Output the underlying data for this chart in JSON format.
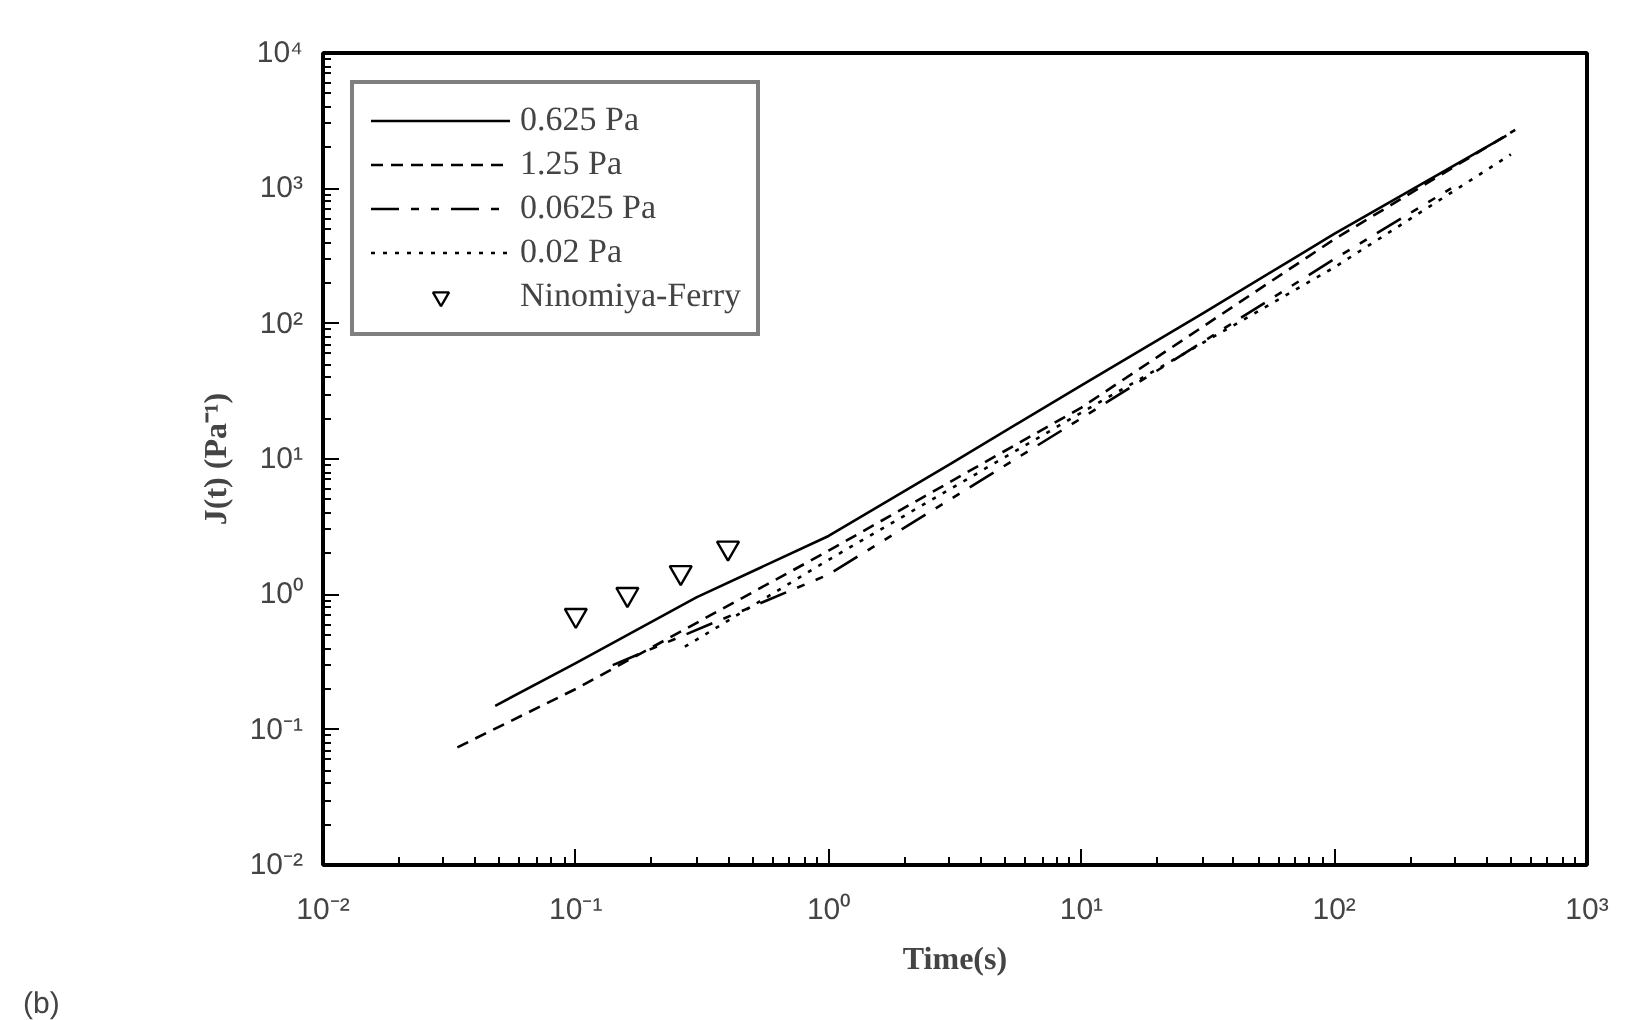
{
  "chart_data": {
    "type": "line",
    "xlabel": "Time(s)",
    "ylabel": "J(t) (Pa⁻¹)",
    "log": "xy",
    "grid": false,
    "legend": "top left",
    "xlim": [
      0.01,
      1000
    ],
    "ylim": [
      0.01,
      10000
    ],
    "xticks": [
      {
        "value": 0.01,
        "label": "10⁻²"
      },
      {
        "value": 0.1,
        "label": "10⁻¹"
      },
      {
        "value": 1,
        "label": "10⁰"
      },
      {
        "value": 10,
        "label": "10¹"
      },
      {
        "value": 100,
        "label": "10²"
      },
      {
        "value": 1000,
        "label": "10³"
      }
    ],
    "yticks": [
      {
        "value": 0.01,
        "label": "10⁻²"
      },
      {
        "value": 0.1,
        "label": "10⁻¹"
      },
      {
        "value": 1,
        "label": "10⁰"
      },
      {
        "value": 10,
        "label": "10¹"
      },
      {
        "value": 100,
        "label": "10²"
      },
      {
        "value": 1000,
        "label": "10³"
      },
      {
        "value": 10000,
        "label": "10⁴"
      }
    ],
    "annotations": [
      "(b)"
    ],
    "series": [
      {
        "name": "0.625 Pa",
        "color": "#000000",
        "line_style": "solid",
        "x": [
          0.048,
          0.1,
          0.3,
          1,
          3,
          10,
          30,
          100,
          480
        ],
        "values": [
          0.15,
          0.31,
          0.95,
          2.7,
          9.1,
          35,
          118,
          460,
          2450
        ]
      },
      {
        "name": "1.25 Pa",
        "color": "#000000",
        "line_style": "dashed",
        "x": [
          0.034,
          0.1,
          1,
          10,
          100,
          520
        ],
        "values": [
          0.074,
          0.2,
          2.1,
          24,
          420,
          2700
        ]
      },
      {
        "name": "0.0625 Pa",
        "color": "#000000",
        "line_style": "dashdot",
        "x": [
          0.14,
          1,
          10,
          100,
          290
        ],
        "values": [
          0.3,
          1.4,
          20,
          300,
          1000
        ]
      },
      {
        "name": "0.02 Pa",
        "color": "#000000",
        "line_style": "dotted",
        "x": [
          0.27,
          1,
          10,
          100,
          500
        ],
        "values": [
          0.41,
          1.8,
          22,
          260,
          1780
        ]
      },
      {
        "name": "Ninomiya-Ferry",
        "type": "scatter",
        "marker": "triangle",
        "color": "#000000",
        "x": [
          0.1,
          0.16,
          0.26,
          0.4
        ],
        "values": [
          0.7,
          1.0,
          1.45,
          2.2
        ]
      }
    ]
  }
}
